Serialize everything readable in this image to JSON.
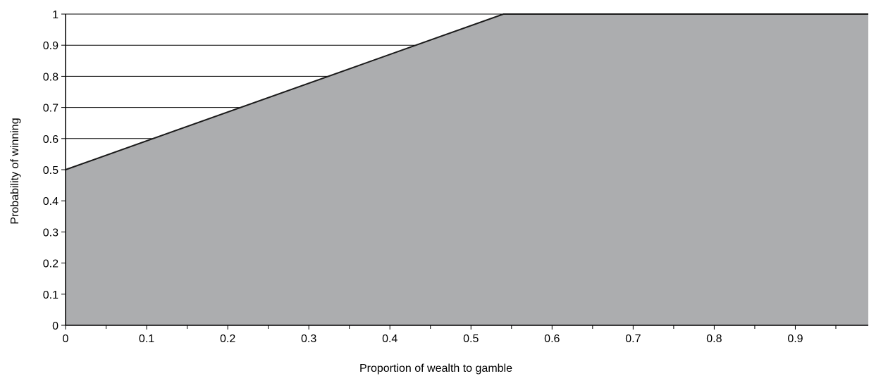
{
  "chart_data": {
    "type": "area",
    "xlabel": "Proportion of wealth to gamble",
    "ylabel": "Probability of winning",
    "xlim": [
      0,
      0.99
    ],
    "ylim": [
      0,
      1
    ],
    "x_ticks": [
      0,
      0.1,
      0.2,
      0.3,
      0.4,
      0.5,
      0.6,
      0.7,
      0.8,
      0.9
    ],
    "x_tick_labels": [
      "0",
      "0.1",
      "0.2",
      "0.3",
      "0.4",
      "0.5",
      "0.6",
      "0.7",
      "0.8",
      "0.9"
    ],
    "x_minor_ticks": [
      0.05,
      0.15,
      0.25,
      0.35,
      0.45,
      0.55,
      0.65,
      0.75,
      0.85,
      0.95
    ],
    "y_ticks": [
      0,
      0.1,
      0.2,
      0.3,
      0.4,
      0.5,
      0.6,
      0.7,
      0.8,
      0.9,
      1
    ],
    "y_tick_labels": [
      "0",
      "0.1",
      "0.2",
      "0.3",
      "0.4",
      "0.5",
      "0.6",
      "0.7",
      "0.8",
      "0.9",
      "1"
    ],
    "grid": "horizontal",
    "legend": "none",
    "series": [
      {
        "x": [
          0,
          0.54,
          0.99
        ],
        "y": [
          0.5,
          1,
          1
        ]
      }
    ],
    "colors": {
      "fill": "#acadaf",
      "line": "#1a1a1a",
      "grid": "#000000",
      "axis": "#000000",
      "background": "#ffffff"
    }
  }
}
